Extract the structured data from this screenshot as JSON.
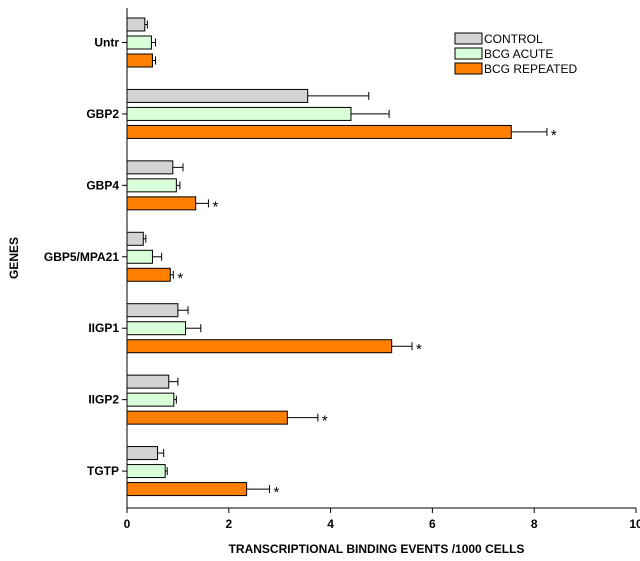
{
  "chart_data": {
    "type": "bar",
    "orientation": "horizontal",
    "title": "",
    "xlabel": "TRANSCRIPTIONAL BINDING EVENTS /1000 CELLS",
    "ylabel": "GENES",
    "xlim": [
      0,
      10
    ],
    "x_ticks": [
      "0",
      "2",
      "4",
      "6",
      "8",
      "10"
    ],
    "grid": false,
    "legend_position": "top-right",
    "significance_marker": "*",
    "categories": [
      "Untr",
      "GBP2",
      "GBP4",
      "GBP5/MPA21",
      "IIGP1",
      "IIGP2",
      "TGTP"
    ],
    "series": [
      {
        "name": "CONTROL",
        "color": "#d3d3d3",
        "values": [
          0.35,
          3.55,
          0.9,
          0.32,
          1.0,
          0.82,
          0.6
        ],
        "errors": [
          0.05,
          1.2,
          0.2,
          0.05,
          0.2,
          0.18,
          0.12
        ],
        "significant": [
          false,
          false,
          false,
          false,
          false,
          false,
          false
        ]
      },
      {
        "name": "BCG ACUTE",
        "color": "#d9ffd9",
        "values": [
          0.48,
          4.4,
          0.97,
          0.5,
          1.15,
          0.92,
          0.75
        ],
        "errors": [
          0.08,
          0.75,
          0.07,
          0.18,
          0.3,
          0.05,
          0.04
        ],
        "significant": [
          false,
          false,
          false,
          false,
          false,
          false,
          false
        ]
      },
      {
        "name": "BCG REPEATED",
        "color": "#ff7f00",
        "values": [
          0.5,
          7.55,
          1.35,
          0.85,
          5.2,
          3.15,
          2.35
        ],
        "errors": [
          0.06,
          0.7,
          0.25,
          0.06,
          0.4,
          0.6,
          0.45
        ],
        "significant": [
          false,
          true,
          true,
          true,
          true,
          true,
          true
        ]
      }
    ]
  }
}
